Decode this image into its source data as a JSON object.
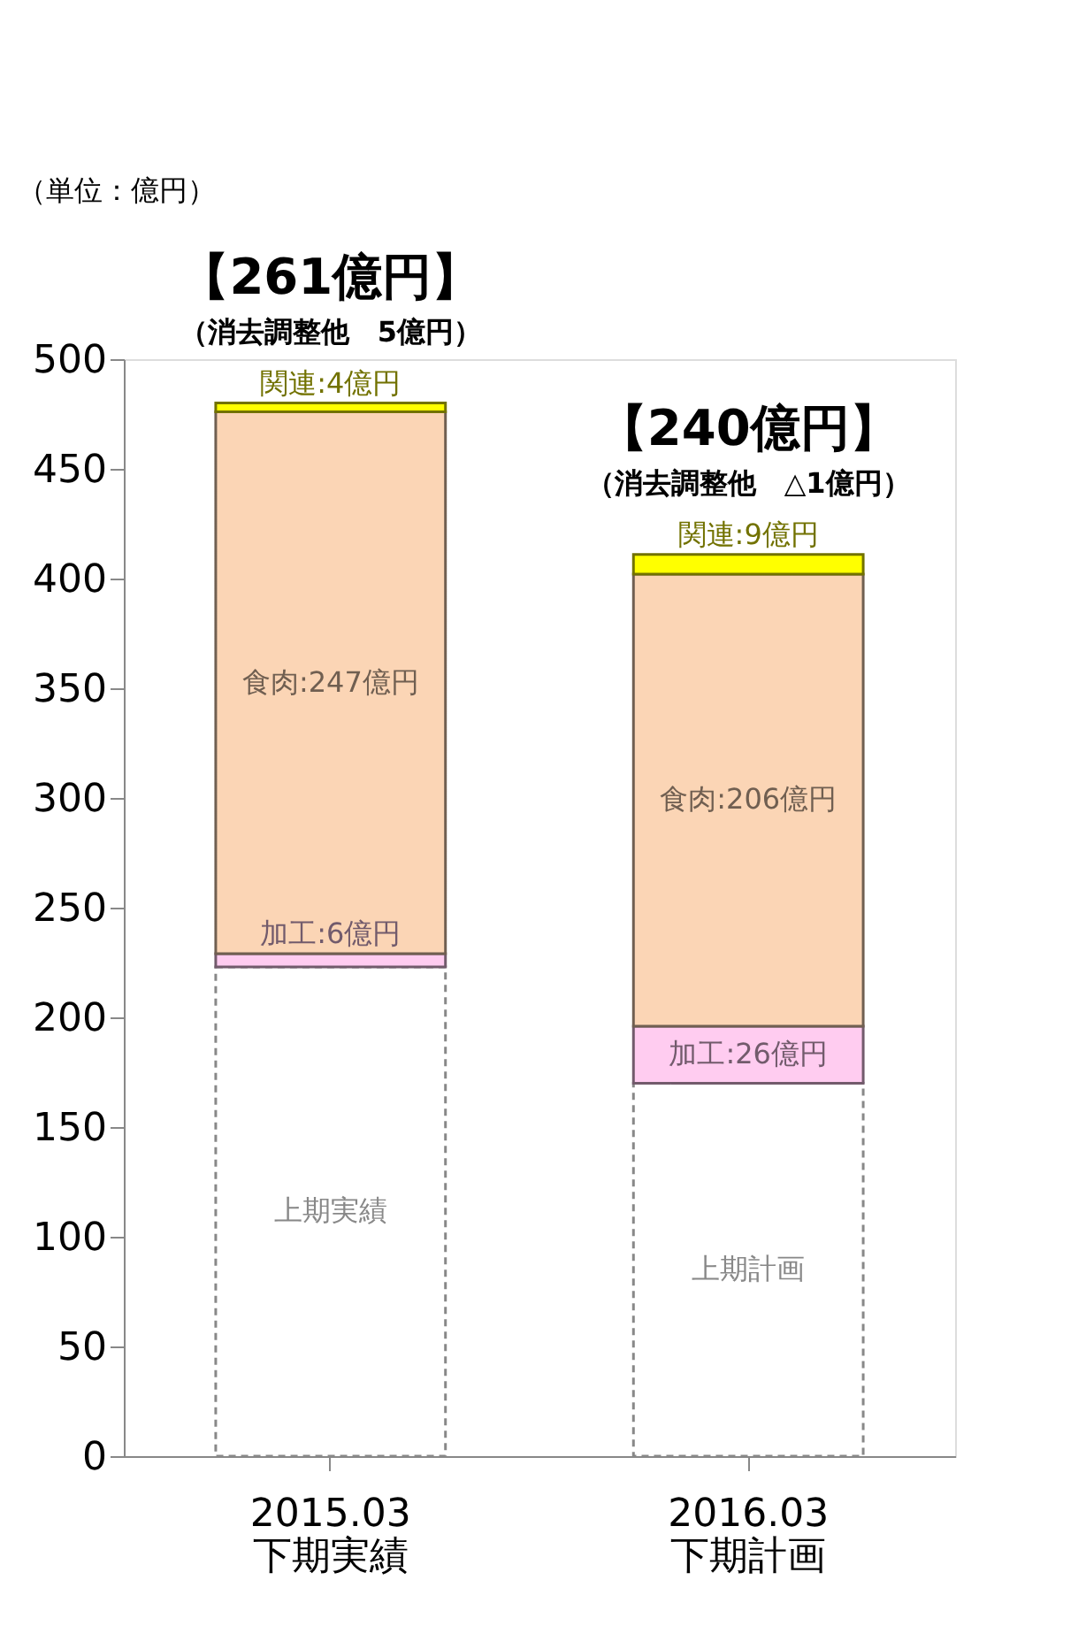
{
  "chart_data": {
    "type": "bar",
    "stacked": true,
    "ylabel": "（単位：億円）",
    "categories": [
      "2015.03\n下期実績",
      "2016.03\n下期計画"
    ],
    "series": [
      {
        "color": "#ffffff",
        "line_style": "dashed",
        "values": [
          223,
          170
        ],
        "value_labels": [
          "上期実績",
          "上期計画"
        ]
      },
      {
        "color": "#ffccf0",
        "values": [
          6,
          26
        ],
        "value_labels": [
          "加工:6億円",
          "加工:26億円"
        ]
      },
      {
        "color": "#fbd5b5",
        "values": [
          247,
          206
        ],
        "value_labels": [
          "食肉:247億円",
          "食肉:206億円"
        ]
      },
      {
        "color": "#ffff00",
        "values": [
          4,
          9
        ],
        "value_labels": [
          "関連:4億円",
          "関連:9億円"
        ]
      }
    ],
    "annotations": [
      "【261億円】",
      "（消去調整他　5億円）",
      "【240億円】",
      "（消去調整他　△1億円）"
    ],
    "ylim": [
      0,
      500
    ],
    "yticks": [
      0,
      50,
      100,
      150,
      200,
      250,
      300,
      350,
      400,
      450,
      500
    ],
    "grid": false
  }
}
